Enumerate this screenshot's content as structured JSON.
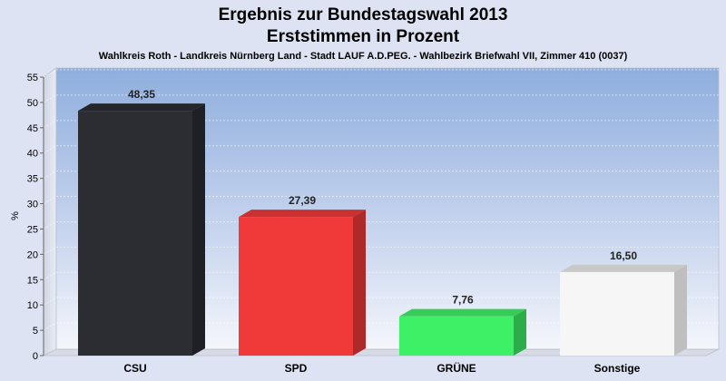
{
  "chart_data": {
    "type": "bar",
    "title": "Ergebnis zur Bundestagswahl 2013",
    "subtitle": "Erststimmen in Prozent",
    "caption": "Wahlkreis Roth - Landkreis Nürnberg Land - Stadt LAUF A.D.PEG. - Wahlbezirk Briefwahl VII, Zimmer 410 (0037)",
    "ylabel": "%",
    "xlabel": "",
    "ylim": [
      0,
      55
    ],
    "yticks": [
      0,
      5,
      10,
      15,
      20,
      25,
      30,
      35,
      40,
      45,
      50,
      55
    ],
    "grid": true,
    "categories": [
      "CSU",
      "SPD",
      "GRÜNE",
      "Sonstige"
    ],
    "values": [
      48.35,
      27.39,
      7.76,
      16.5
    ],
    "value_labels": [
      "48,35",
      "27,39",
      "7,76",
      "16,50"
    ],
    "colors": [
      "#2b2d33",
      "#f03a3a",
      "#3ef066",
      "#f6f6f6"
    ]
  }
}
